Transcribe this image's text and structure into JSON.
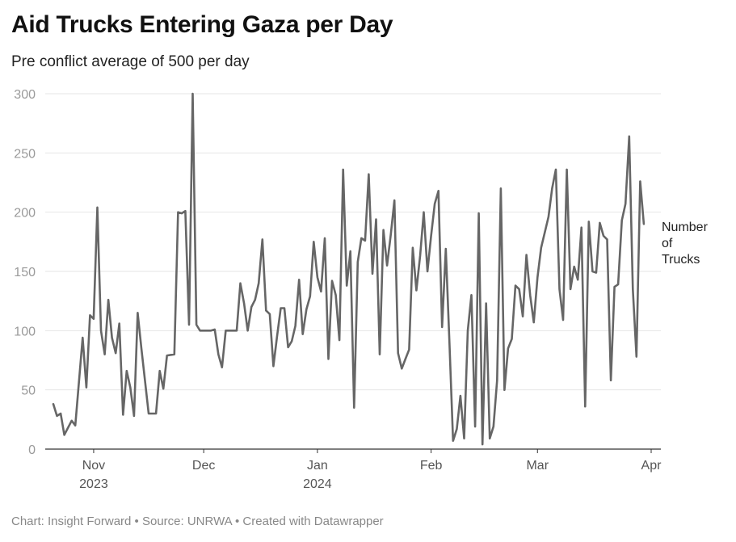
{
  "title": "Aid Trucks Entering Gaza per Day",
  "subtitle": "Pre conflict average of 500 per day",
  "footer": "Chart: Insight Forward • Source: UNRWA • Created with Datawrapper",
  "colors": {
    "line": "#666666",
    "grid": "#e6e6e6",
    "axis": "#333333"
  },
  "chart_data": {
    "type": "line",
    "title": "Aid Trucks Entering Gaza per Day",
    "subtitle": "Pre conflict average of 500 per day",
    "xlabel": "",
    "ylabel": "",
    "ylim": [
      0,
      300
    ],
    "yticks": [
      0,
      50,
      100,
      150,
      200,
      250,
      300
    ],
    "grid": true,
    "x_range": [
      "2023-10-21",
      "2024-04-01"
    ],
    "xticks": [
      {
        "date": "2023-11-01",
        "label": "Nov",
        "sublabel": "2023"
      },
      {
        "date": "2023-12-01",
        "label": "Dec",
        "sublabel": ""
      },
      {
        "date": "2024-01-01",
        "label": "Jan",
        "sublabel": "2024"
      },
      {
        "date": "2024-02-01",
        "label": "Feb",
        "sublabel": ""
      },
      {
        "date": "2024-03-01",
        "label": "Mar",
        "sublabel": ""
      },
      {
        "date": "2024-04-01",
        "label": "Apr",
        "sublabel": ""
      }
    ],
    "series": [
      {
        "name": "Number of Trucks",
        "label_lines": [
          "Number",
          "of",
          "Trucks"
        ],
        "points": [
          [
            "2023-10-21",
            38
          ],
          [
            "2023-10-22",
            28
          ],
          [
            "2023-10-23",
            30
          ],
          [
            "2023-10-24",
            12
          ],
          [
            "2023-10-26",
            24
          ],
          [
            "2023-10-27",
            20
          ],
          [
            "2023-10-29",
            94
          ],
          [
            "2023-10-30",
            52
          ],
          [
            "2023-10-31",
            113
          ],
          [
            "2023-11-01",
            110
          ],
          [
            "2023-11-02",
            204
          ],
          [
            "2023-11-03",
            100
          ],
          [
            "2023-11-04",
            80
          ],
          [
            "2023-11-05",
            126
          ],
          [
            "2023-11-06",
            94
          ],
          [
            "2023-11-07",
            81
          ],
          [
            "2023-11-08",
            106
          ],
          [
            "2023-11-09",
            29
          ],
          [
            "2023-11-10",
            66
          ],
          [
            "2023-11-11",
            52
          ],
          [
            "2023-11-12",
            28
          ],
          [
            "2023-11-13",
            115
          ],
          [
            "2023-11-14",
            85
          ],
          [
            "2023-11-16",
            30
          ],
          [
            "2023-11-18",
            30
          ],
          [
            "2023-11-19",
            66
          ],
          [
            "2023-11-20",
            51
          ],
          [
            "2023-11-21",
            79
          ],
          [
            "2023-11-23",
            80
          ],
          [
            "2023-11-24",
            200
          ],
          [
            "2023-11-25",
            199
          ],
          [
            "2023-11-26",
            201
          ],
          [
            "2023-11-27",
            105
          ],
          [
            "2023-11-28",
            300
          ],
          [
            "2023-11-29",
            105
          ],
          [
            "2023-11-30",
            100
          ],
          [
            "2023-12-01",
            100
          ],
          [
            "2023-12-02",
            100
          ],
          [
            "2023-12-03",
            100
          ],
          [
            "2023-12-04",
            101
          ],
          [
            "2023-12-05",
            80
          ],
          [
            "2023-12-06",
            69
          ],
          [
            "2023-12-07",
            100
          ],
          [
            "2023-12-08",
            100
          ],
          [
            "2023-12-10",
            100
          ],
          [
            "2023-12-11",
            140
          ],
          [
            "2023-12-12",
            123
          ],
          [
            "2023-12-13",
            100
          ],
          [
            "2023-12-14",
            120
          ],
          [
            "2023-12-15",
            126
          ],
          [
            "2023-12-16",
            140
          ],
          [
            "2023-12-17",
            177
          ],
          [
            "2023-12-18",
            117
          ],
          [
            "2023-12-19",
            114
          ],
          [
            "2023-12-20",
            70
          ],
          [
            "2023-12-21",
            95
          ],
          [
            "2023-12-22",
            119
          ],
          [
            "2023-12-23",
            119
          ],
          [
            "2023-12-24",
            86
          ],
          [
            "2023-12-25",
            91
          ],
          [
            "2023-12-26",
            104
          ],
          [
            "2023-12-27",
            143
          ],
          [
            "2023-12-28",
            97
          ],
          [
            "2023-12-29",
            118
          ],
          [
            "2023-12-30",
            129
          ],
          [
            "2023-12-31",
            175
          ],
          [
            "2024-01-01",
            145
          ],
          [
            "2024-01-02",
            133
          ],
          [
            "2024-01-03",
            178
          ],
          [
            "2024-01-04",
            76
          ],
          [
            "2024-01-05",
            142
          ],
          [
            "2024-01-06",
            130
          ],
          [
            "2024-01-07",
            92
          ],
          [
            "2024-01-08",
            236
          ],
          [
            "2024-01-09",
            138
          ],
          [
            "2024-01-10",
            167
          ],
          [
            "2024-01-11",
            35
          ],
          [
            "2024-01-12",
            158
          ],
          [
            "2024-01-13",
            178
          ],
          [
            "2024-01-14",
            176
          ],
          [
            "2024-01-15",
            232
          ],
          [
            "2024-01-16",
            148
          ],
          [
            "2024-01-17",
            194
          ],
          [
            "2024-01-18",
            80
          ],
          [
            "2024-01-19",
            185
          ],
          [
            "2024-01-20",
            155
          ],
          [
            "2024-01-21",
            181
          ],
          [
            "2024-01-22",
            210
          ],
          [
            "2024-01-23",
            81
          ],
          [
            "2024-01-24",
            68
          ],
          [
            "2024-01-25",
            76
          ],
          [
            "2024-01-26",
            84
          ],
          [
            "2024-01-27",
            170
          ],
          [
            "2024-01-28",
            134
          ],
          [
            "2024-01-29",
            163
          ],
          [
            "2024-01-30",
            200
          ],
          [
            "2024-01-31",
            150
          ],
          [
            "2024-02-01",
            180
          ],
          [
            "2024-02-02",
            207
          ],
          [
            "2024-02-03",
            218
          ],
          [
            "2024-02-04",
            103
          ],
          [
            "2024-02-05",
            169
          ],
          [
            "2024-02-06",
            90
          ],
          [
            "2024-02-07",
            7
          ],
          [
            "2024-02-08",
            17
          ],
          [
            "2024-02-09",
            45
          ],
          [
            "2024-02-10",
            9
          ],
          [
            "2024-02-11",
            100
          ],
          [
            "2024-02-12",
            130
          ],
          [
            "2024-02-13",
            19
          ],
          [
            "2024-02-14",
            199
          ],
          [
            "2024-02-15",
            4
          ],
          [
            "2024-02-16",
            123
          ],
          [
            "2024-02-17",
            9
          ],
          [
            "2024-02-18",
            19
          ],
          [
            "2024-02-19",
            58
          ],
          [
            "2024-02-20",
            220
          ],
          [
            "2024-02-21",
            50
          ],
          [
            "2024-02-22",
            85
          ],
          [
            "2024-02-23",
            93
          ],
          [
            "2024-02-24",
            138
          ],
          [
            "2024-02-25",
            135
          ],
          [
            "2024-02-26",
            112
          ],
          [
            "2024-02-27",
            164
          ],
          [
            "2024-02-28",
            130
          ],
          [
            "2024-02-29",
            107
          ],
          [
            "2024-03-01",
            145
          ],
          [
            "2024-03-02",
            170
          ],
          [
            "2024-03-04",
            196
          ],
          [
            "2024-03-05",
            220
          ],
          [
            "2024-03-06",
            236
          ],
          [
            "2024-03-07",
            135
          ],
          [
            "2024-03-08",
            109
          ],
          [
            "2024-03-09",
            236
          ],
          [
            "2024-03-10",
            135
          ],
          [
            "2024-03-11",
            154
          ],
          [
            "2024-03-12",
            143
          ],
          [
            "2024-03-13",
            187
          ],
          [
            "2024-03-14",
            36
          ],
          [
            "2024-03-15",
            192
          ],
          [
            "2024-03-16",
            150
          ],
          [
            "2024-03-17",
            149
          ],
          [
            "2024-03-18",
            191
          ],
          [
            "2024-03-19",
            180
          ],
          [
            "2024-03-20",
            177
          ],
          [
            "2024-03-21",
            58
          ],
          [
            "2024-03-22",
            137
          ],
          [
            "2024-03-23",
            139
          ],
          [
            "2024-03-24",
            193
          ],
          [
            "2024-03-25",
            207
          ],
          [
            "2024-03-26",
            264
          ],
          [
            "2024-03-27",
            135
          ],
          [
            "2024-03-28",
            78
          ],
          [
            "2024-03-29",
            226
          ],
          [
            "2024-03-30",
            190
          ]
        ]
      }
    ]
  }
}
